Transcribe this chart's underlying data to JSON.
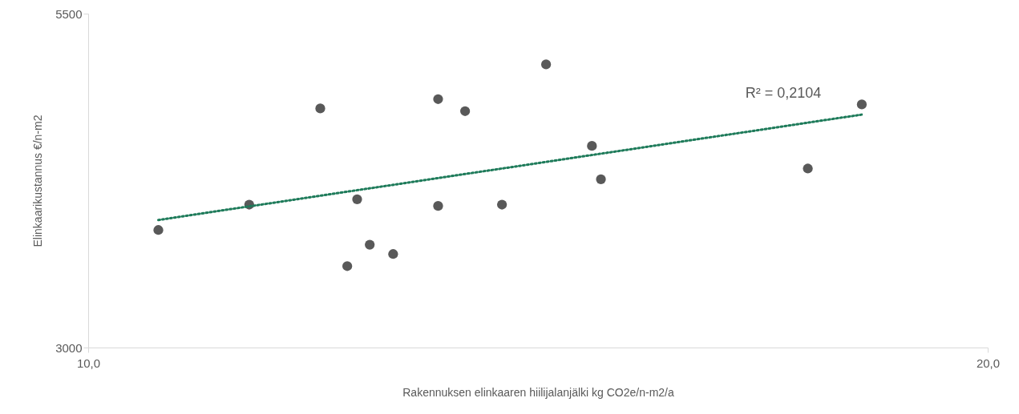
{
  "chart_data": {
    "type": "scatter",
    "xlabel": "Rakennuksen elinkaaren hiilijalanjälki kg CO2e/n-m2/a",
    "ylabel": "Elinkaarikustannus €/n-m2",
    "x": [
      10.78,
      11.79,
      12.58,
      12.99,
      12.88,
      13.13,
      13.39,
      13.89,
      13.89,
      14.19,
      14.6,
      15.09,
      15.6,
      15.7,
      18.0,
      18.6
    ],
    "series": [
      {
        "color": "#595959",
        "values": [
          3880,
          4070,
          4790,
          4110,
          3610,
          3770,
          3700,
          4860,
          4060,
          4770,
          4070,
          5120,
          4510,
          4260,
          4340,
          4820
        ]
      },
      {
        "type": "line",
        "color": "#1e7b5a",
        "line_style": "dotted",
        "marker": "none",
        "x": [
          10.78,
          18.6
        ],
        "values": [
          3955,
          4744
        ]
      }
    ],
    "xlim": [
      10,
      20
    ],
    "xticks": [
      {
        "value": 10,
        "label": "10,0"
      },
      {
        "value": 20,
        "label": "20,0"
      }
    ],
    "ylim": [
      3000,
      5500
    ],
    "yticks": [
      3000,
      5500
    ],
    "annotations": [
      "R² = 0,2104"
    ],
    "grid": false,
    "marker": "circle"
  }
}
